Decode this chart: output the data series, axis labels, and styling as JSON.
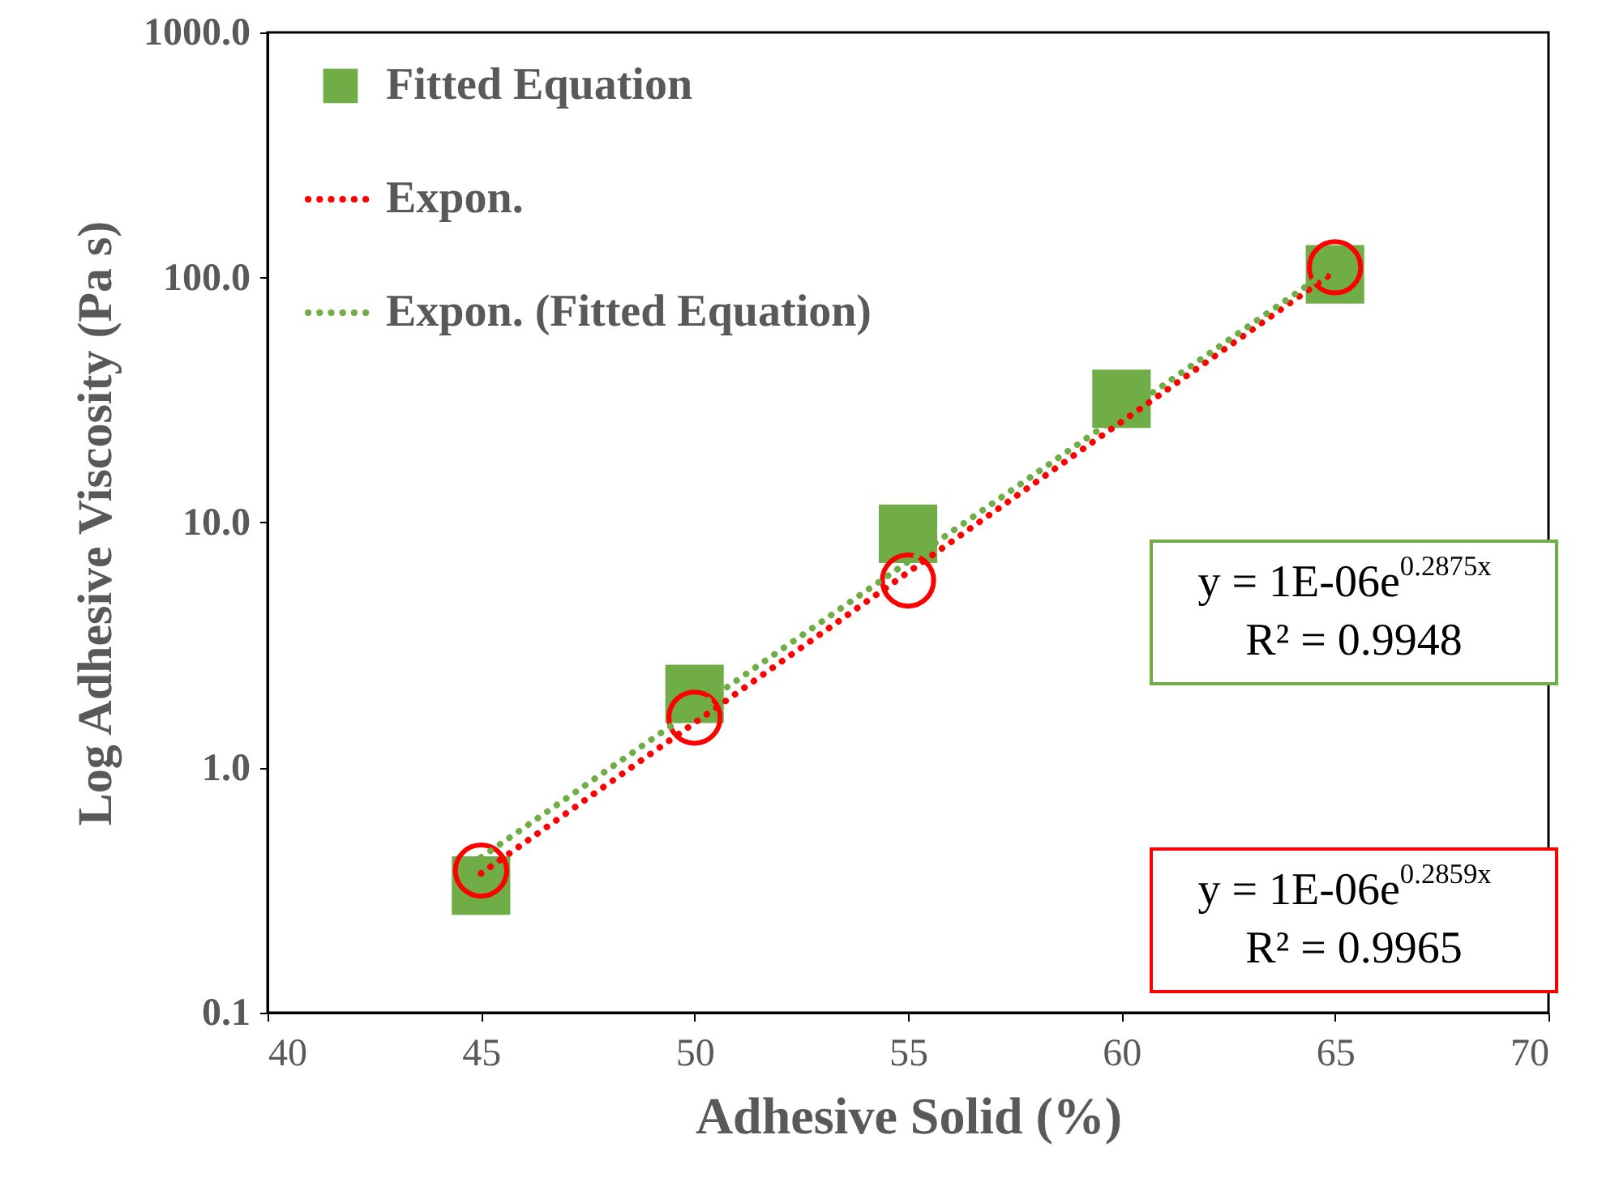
{
  "chart_data": {
    "type": "scatter",
    "xlabel": "Adhesive Solid (%)",
    "ylabel": "Log Adhesive Viscosity (Pa s)",
    "xlim": [
      40,
      70
    ],
    "xticks": [
      40,
      45,
      50,
      55,
      60,
      65,
      70
    ],
    "ylim": [
      0.1,
      1000
    ],
    "yticks": [
      0.1,
      {
        "value": 1,
        "label": "1.0"
      },
      {
        "value": 10,
        "label": "10.0"
      },
      {
        "value": 100,
        "label": "100.0"
      },
      {
        "value": 1000,
        "label": "1000.0"
      }
    ],
    "log": "y",
    "grid": false,
    "legend": "top left",
    "series": [
      {
        "name": "Fitted Equation",
        "marker": "square",
        "color": "#70ad47",
        "x": [
          45,
          50,
          55,
          60,
          65
        ],
        "values": [
          0.33,
          2.0,
          9.0,
          32,
          103
        ]
      },
      {
        "marker": "circle",
        "color": "#ff0000",
        "x": [
          45,
          50,
          55,
          60,
          65
        ],
        "values": [
          0.38,
          1.6,
          5.8,
          null,
          110
        ]
      },
      {
        "name": "Expon.",
        "type": "line",
        "line_style": "dotted",
        "marker": "none",
        "color": "#ff0000",
        "x": [
          45,
          65
        ],
        "values": [
          0.37,
          106
        ]
      },
      {
        "name": "Expon. (Fitted Equation)",
        "type": "line",
        "line_style": "dotted",
        "marker": "none",
        "color": "#70ad47",
        "x": [
          45,
          65
        ],
        "values": [
          0.43,
          111
        ]
      }
    ],
    "annotations": [
      "y = 1E-06e$^{0.2875x}$\nR² = 0.9948",
      "y = 1E-06e$^{0.2859x}$\nR² = 0.9965"
    ]
  }
}
